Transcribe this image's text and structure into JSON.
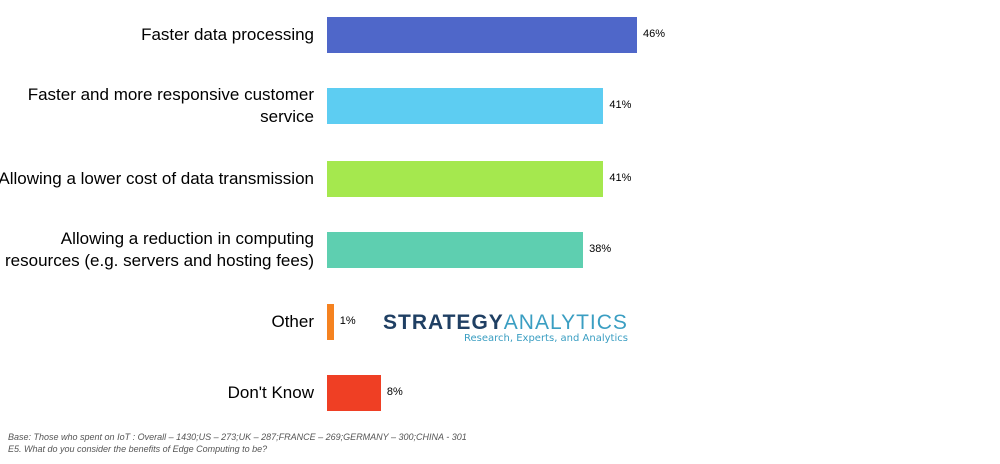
{
  "chart_data": {
    "type": "bar",
    "orientation": "horizontal",
    "categories": [
      "Faster data processing",
      "Faster and more responsive customer service",
      "Allowing a lower cost of data transmission",
      "Allowing a reduction in computing resources (e.g. servers and hosting fees)",
      "Other",
      "Don't Know"
    ],
    "values": [
      46,
      41,
      41,
      38,
      1,
      8
    ],
    "value_labels": [
      "46%",
      "41%",
      "41%",
      "38%",
      "1%",
      "8%"
    ],
    "colors": [
      "#4f67c9",
      "#5dcdf2",
      "#a5e84e",
      "#5ecfb0",
      "#f58220",
      "#ef3f24"
    ],
    "title": "",
    "xlabel": "",
    "ylabel": "",
    "xlim": [
      0,
      100
    ],
    "grid": false
  },
  "logo": {
    "name_a": "STRATEGY",
    "name_b": "ANALYTICS",
    "tagline": "Research, Experts, and Analytics"
  },
  "footnotes": [
    "Base: Those who spent on IoT : Overall – 1430;US – 273;UK – 287;FRANCE – 269;GERMANY – 300;CHINA - 301",
    "E5. What do you consider the benefits of Edge Computing to be?"
  ]
}
